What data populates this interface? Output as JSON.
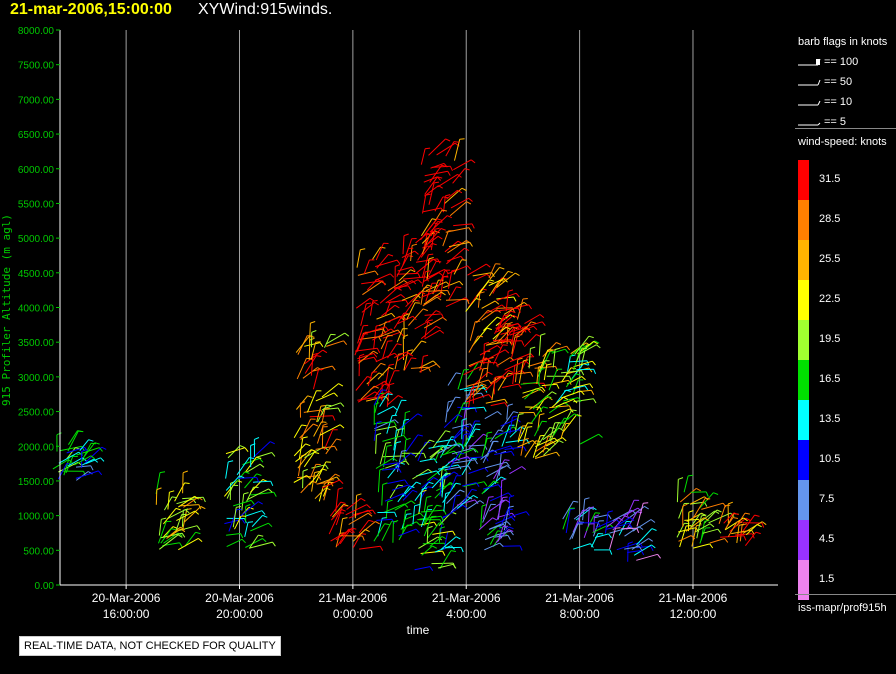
{
  "header": {
    "datetime": "21-mar-2006,15:00:00",
    "product": "XYWind:915winds."
  },
  "colors": {
    "title": "#ffff00",
    "yaxis": "#00c800",
    "grid": "#a0a0a0"
  },
  "legend": {
    "barb_title": "barb flags in knots",
    "barb_entries": [
      "== 100",
      "== 50",
      "== 10",
      "== 5"
    ],
    "speed_title": "wind-speed: knots",
    "speed_bins": [
      {
        "label": "31.5",
        "color": "#ff0000"
      },
      {
        "label": "28.5",
        "color": "#ff8000"
      },
      {
        "label": "25.5",
        "color": "#ffb400"
      },
      {
        "label": "22.5",
        "color": "#ffff00"
      },
      {
        "label": "19.5",
        "color": "#a0ff30"
      },
      {
        "label": "16.5",
        "color": "#00e000"
      },
      {
        "label": "13.5",
        "color": "#00ffff"
      },
      {
        "label": "10.5",
        "color": "#0000ff"
      },
      {
        "label": "7.5",
        "color": "#6495ed"
      },
      {
        "label": "4.5",
        "color": "#9932ff"
      },
      {
        "label": "1.5",
        "color": "#ee82ee"
      }
    ],
    "footer": "iss-mapr/prof915h"
  },
  "note": "REAL-TIME DATA, NOT CHECKED FOR QUALITY",
  "chart_data": {
    "type": "scatter",
    "ylabel": "915 Profiler Altitude (m agl)",
    "xlabel": "time",
    "ylim": [
      0,
      8000
    ],
    "yticks": [
      "0.00",
      "500.00",
      "1000.00",
      "1500.00",
      "2000.00",
      "2500.00",
      "3000.00",
      "3500.00",
      "4000.00",
      "4500.00",
      "5000.00",
      "5500.00",
      "6000.00",
      "6500.00",
      "7000.00",
      "7500.00",
      "8000.00"
    ],
    "xlim": [
      "2006-03-20 13:40",
      "2006-03-21 15:00"
    ],
    "xticks": [
      {
        "date": "20-Mar-2006",
        "time": "16:00:00",
        "at": "2006-03-20 16:00"
      },
      {
        "date": "20-Mar-2006",
        "time": "20:00:00",
        "at": "2006-03-20 20:00"
      },
      {
        "date": "21-Mar-2006",
        "time": "0:00:00",
        "at": "2006-03-21 00:00"
      },
      {
        "date": "21-Mar-2006",
        "time": "4:00:00",
        "at": "2006-03-21 04:00"
      },
      {
        "date": "21-Mar-2006",
        "time": "8:00:00",
        "at": "2006-03-21 08:00"
      },
      {
        "date": "21-Mar-2006",
        "time": "12:00:00",
        "at": "2006-03-21 12:00"
      }
    ],
    "grid": "vertical",
    "series": [
      {
        "clusters": [
          {
            "t": "2006-03-20 14:00",
            "alt": [
              1400,
              2100
            ],
            "speed": 13.5
          },
          {
            "t": "2006-03-20 17:30",
            "alt": [
              500,
              1400
            ],
            "speed": 22.5
          },
          {
            "t": "2006-03-20 20:00",
            "alt": [
              500,
              1900
            ],
            "speed": 16.5
          },
          {
            "t": "2006-03-20 22:30",
            "alt": [
              1200,
              3500
            ],
            "speed": 25.5
          },
          {
            "t": "2006-03-20 23:40",
            "alt": [
              500,
              1100
            ],
            "speed": 31.5
          },
          {
            "t": "2006-03-21 00:40",
            "alt": [
              2500,
              4700
            ],
            "speed": 31.5
          },
          {
            "t": "2006-03-21 01:20",
            "alt": [
              600,
              2600
            ],
            "speed": 13.5
          },
          {
            "t": "2006-03-21 02:00",
            "alt": [
              3000,
              5000
            ],
            "speed": 31.5
          },
          {
            "t": "2006-03-21 02:40",
            "alt": [
              200,
              2000
            ],
            "speed": 16.5
          },
          {
            "t": "2006-03-21 03:00",
            "alt": [
              4000,
              6200
            ],
            "speed": 31.5
          },
          {
            "t": "2006-03-21 03:30",
            "alt": [
              1000,
              3000
            ],
            "speed": 10.5
          },
          {
            "t": "2006-03-21 04:30",
            "alt": [
              2500,
              4500
            ],
            "speed": 28.5
          },
          {
            "t": "2006-03-21 05:00",
            "alt": [
              500,
              2500
            ],
            "speed": 10.5
          },
          {
            "t": "2006-03-21 05:30",
            "alt": [
              2800,
              4000
            ],
            "speed": 31.5
          },
          {
            "t": "2006-03-21 06:20",
            "alt": [
              1800,
              3400
            ],
            "speed": 22.5
          },
          {
            "t": "2006-03-21 07:30",
            "alt": [
              2000,
              3400
            ],
            "speed": 19.5
          },
          {
            "t": "2006-03-21 08:00",
            "alt": [
              500,
              1000
            ],
            "speed": 10.5
          },
          {
            "t": "2006-03-21 09:30",
            "alt": [
              300,
              1000
            ],
            "speed": 7.5
          },
          {
            "t": "2006-03-21 12:00",
            "alt": [
              500,
              1400
            ],
            "speed": 22.5
          },
          {
            "t": "2006-03-21 13:30",
            "alt": [
              500,
              900
            ],
            "speed": 28.5
          }
        ]
      }
    ]
  }
}
